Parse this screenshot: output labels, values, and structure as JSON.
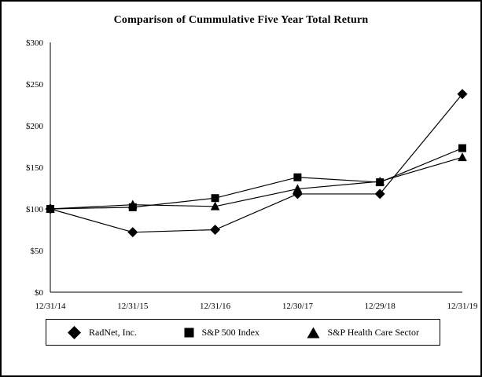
{
  "title": "Comparison of Cummulative Five Year Total Return",
  "chart_data": {
    "type": "line",
    "categories": [
      "12/31/14",
      "12/31/15",
      "12/31/16",
      "12/30/17",
      "12/29/18",
      "12/31/19"
    ],
    "series": [
      {
        "name": "RadNet, Inc.",
        "marker": "diamond",
        "values": [
          100,
          72,
          75,
          118,
          118,
          238
        ]
      },
      {
        "name": "S&P 500 Index",
        "marker": "square",
        "values": [
          100,
          102,
          113,
          138,
          132,
          173
        ]
      },
      {
        "name": "S&P Health Care Sector",
        "marker": "triangle",
        "values": [
          100,
          105,
          103,
          124,
          133,
          162
        ]
      }
    ],
    "ylim": [
      0,
      300
    ],
    "y_tick_step": 50,
    "y_tick_prefix": "$",
    "xlabel": "",
    "ylabel": "",
    "grid": false,
    "legend_position": "bottom",
    "line_color": "#000000",
    "background_color": "#ffffff"
  }
}
